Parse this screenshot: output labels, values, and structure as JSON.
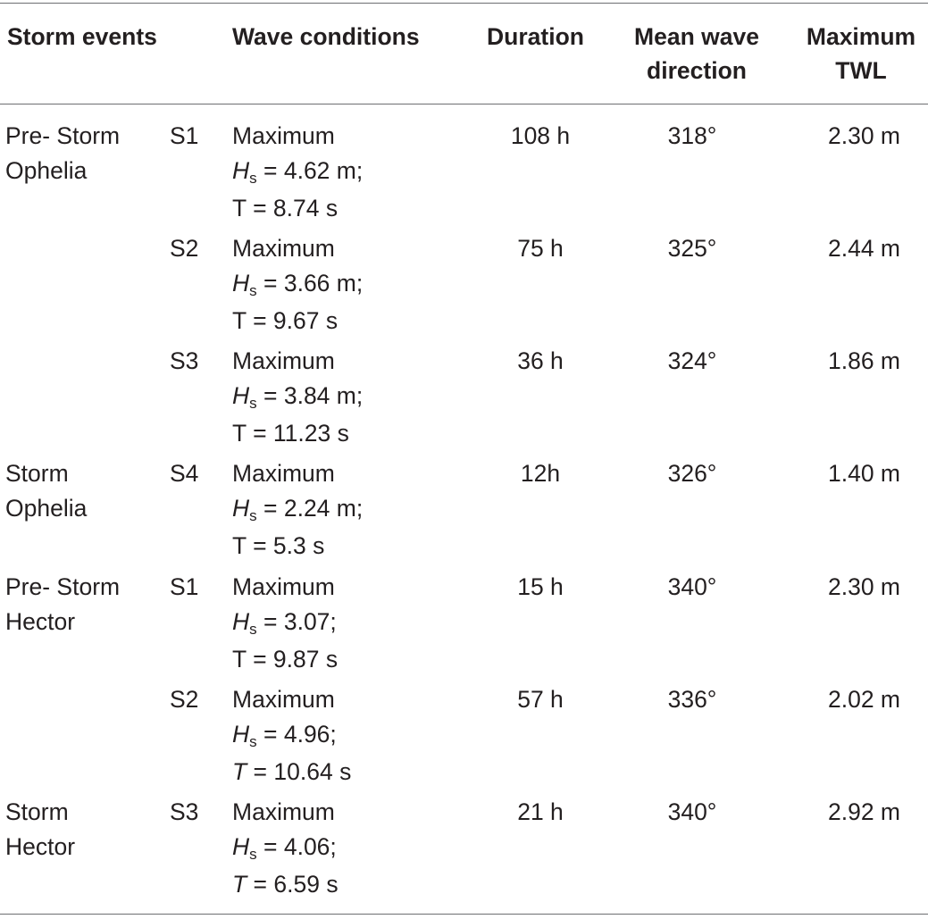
{
  "headers": {
    "storm_events": "Storm events",
    "wave_conditions": "Wave conditions",
    "duration": "Duration",
    "mean_wave_direction_1": "Mean wave",
    "mean_wave_direction_2": "direction",
    "max_twl_1": "Maximum",
    "max_twl_2": "TWL"
  },
  "rows": [
    {
      "event_1": "Pre- Storm",
      "event_2": "Ophelia",
      "id": "S1",
      "wave_label": "Maximum",
      "hs_symbol": "H",
      "hs_sub": "s",
      "hs_value": " = 4.62 m;",
      "t_text": "T = 8.74 s",
      "t_italic": false,
      "duration": "108 h",
      "direction": "318°",
      "twl": "2.30 m"
    },
    {
      "event_1": "",
      "event_2": "",
      "id": "S2",
      "wave_label": "Maximum",
      "hs_symbol": "H",
      "hs_sub": "s",
      "hs_value": " = 3.66 m;",
      "t_text": "T = 9.67 s",
      "t_italic": false,
      "duration": "75 h",
      "direction": "325°",
      "twl": "2.44 m"
    },
    {
      "event_1": "",
      "event_2": "",
      "id": "S3",
      "wave_label": "Maximum",
      "hs_symbol": "H",
      "hs_sub": "s",
      "hs_value": " = 3.84 m;",
      "t_text": "T = 11.23 s",
      "t_italic": false,
      "duration": "36 h",
      "direction": "324°",
      "twl": "1.86 m"
    },
    {
      "event_1": "Storm",
      "event_2": "Ophelia",
      "id": "S4",
      "wave_label": "Maximum",
      "hs_symbol": "H",
      "hs_sub": "s",
      "hs_value": " = 2.24 m;",
      "t_text": "T = 5.3 s",
      "t_italic": false,
      "duration": "12h",
      "direction": "326°",
      "twl": "1.40 m"
    },
    {
      "event_1": "Pre- Storm",
      "event_2": "Hector",
      "id": "S1",
      "wave_label": "Maximum",
      "hs_symbol": "H",
      "hs_sub": "s",
      "hs_value": " = 3.07;",
      "t_text": "T = 9.87 s",
      "t_italic": false,
      "duration": "15 h",
      "direction": "340°",
      "twl": "2.30 m"
    },
    {
      "event_1": "",
      "event_2": "",
      "id": "S2",
      "wave_label": "Maximum",
      "hs_symbol": "H",
      "hs_sub": "s",
      "hs_value": " = 4.96;",
      "t_symbol": "T",
      "t_rest": " = 10.64 s",
      "t_italic": true,
      "duration": "57 h",
      "direction": "336°",
      "twl": "2.02 m"
    },
    {
      "event_1": "Storm",
      "event_2": "Hector",
      "id": "S3",
      "wave_label": "Maximum",
      "hs_symbol": "H",
      "hs_sub": "s",
      "hs_value": " = 4.06;",
      "t_symbol": "T",
      "t_rest": " = 6.59 s",
      "t_italic": true,
      "duration": "21 h",
      "direction": "340°",
      "twl": "2.92 m"
    }
  ]
}
